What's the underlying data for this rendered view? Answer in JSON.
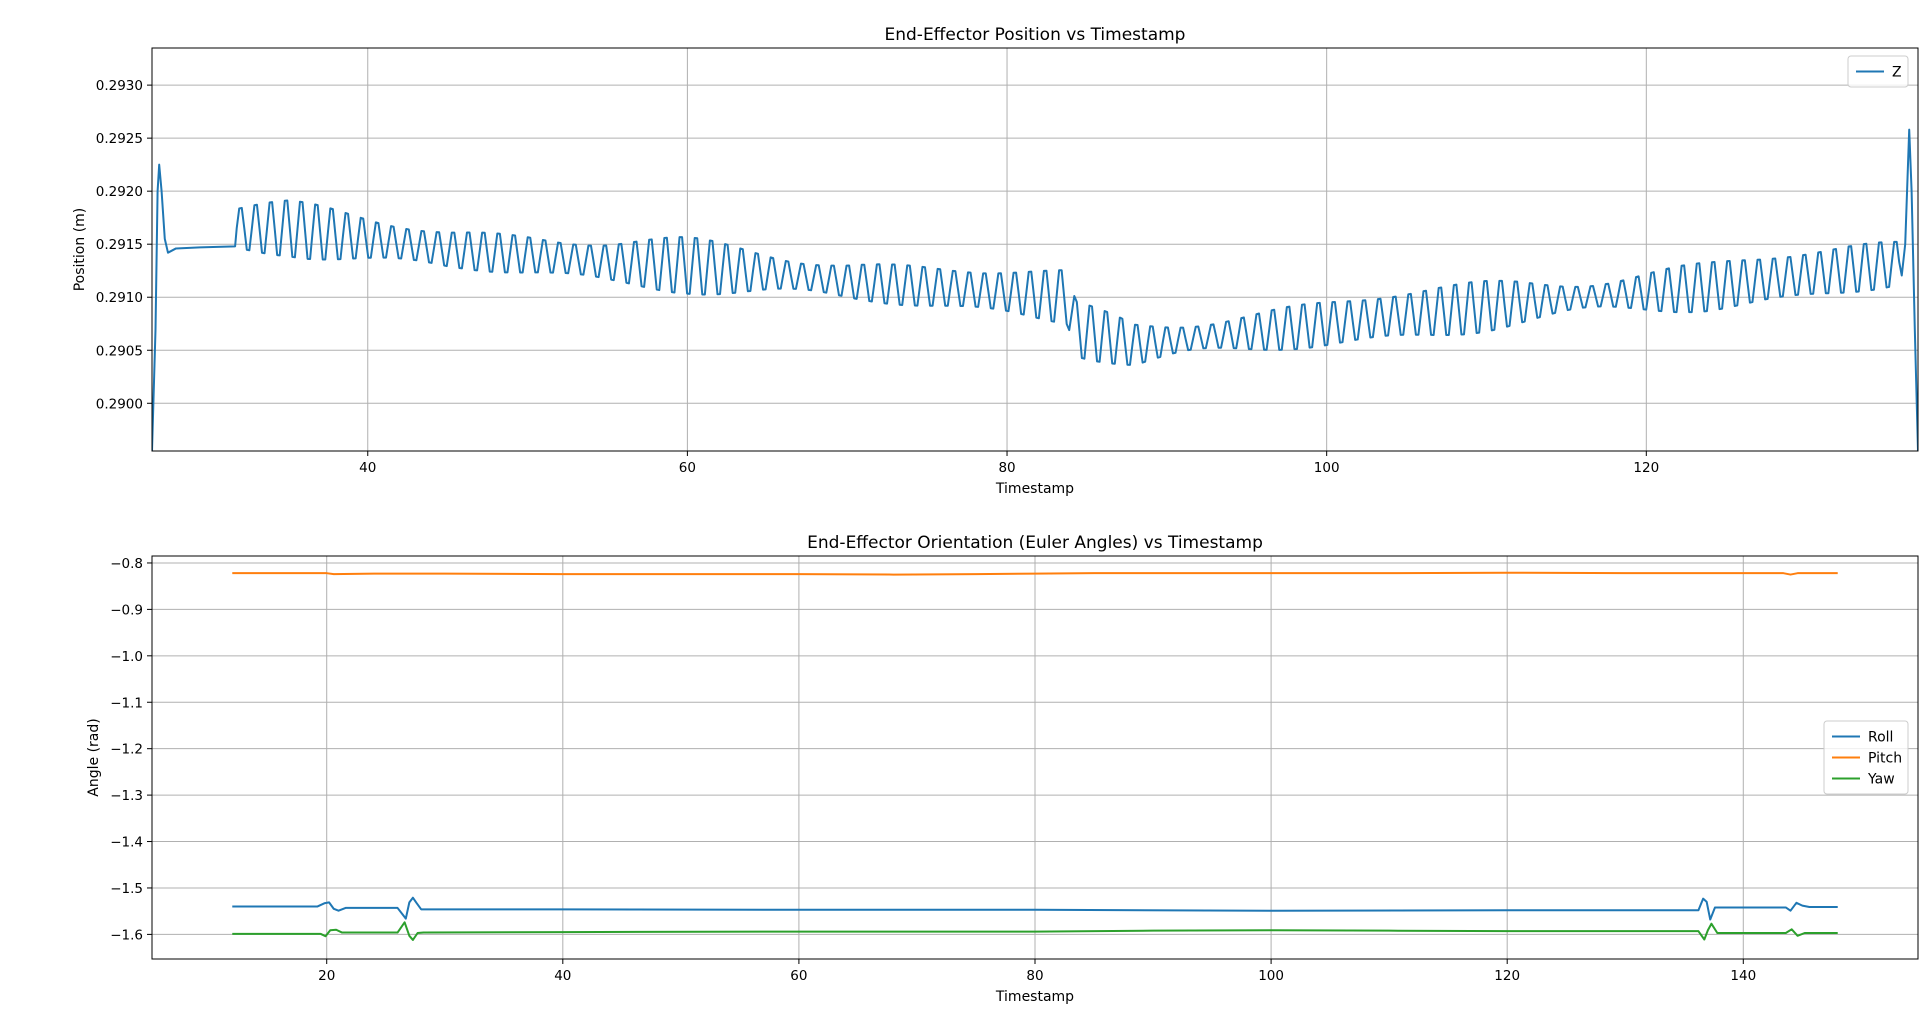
{
  "chart_data": [
    {
      "type": "line",
      "title": "End-Effector Position vs Timestamp",
      "xlabel": "Timestamp",
      "ylabel": "Position (m)",
      "xlim": [
        26.5,
        137.0
      ],
      "ylim": [
        0.28955,
        0.29335
      ],
      "xticks": [
        40,
        60,
        80,
        100,
        120
      ],
      "yticks": [
        0.29,
        0.2905,
        0.291,
        0.2915,
        0.292,
        0.2925,
        0.293
      ],
      "ytick_decimals": 4,
      "grid": true,
      "legend": "top-right",
      "series": [
        {
          "name": "Z",
          "color": "#1f77b4",
          "oscillation": {
            "amplitude": 0.00028,
            "period": 0.95,
            "from_x": 31.8,
            "to_x": 136.0
          },
          "points": [
            [
              26.5,
              0.28955
            ],
            [
              26.72,
              0.2907
            ],
            [
              26.85,
              0.292
            ],
            [
              26.95,
              0.29225
            ],
            [
              27.1,
              0.292
            ],
            [
              27.3,
              0.29155
            ],
            [
              27.5,
              0.29142
            ],
            [
              28.0,
              0.29146
            ],
            [
              29.5,
              0.29147
            ],
            [
              31.7,
              0.29148
            ],
            [
              31.8,
              0.29165
            ],
            [
              35,
              0.29165
            ],
            [
              40,
              0.29155
            ],
            [
              45,
              0.29145
            ],
            [
              50,
              0.2914
            ],
            [
              55,
              0.29133
            ],
            [
              60,
              0.2913
            ],
            [
              65,
              0.29123
            ],
            [
              70,
              0.29115
            ],
            [
              75,
              0.2911
            ],
            [
              80,
              0.29105
            ],
            [
              83.8,
              0.291
            ],
            [
              84.3,
              0.2907
            ],
            [
              88,
              0.29055
            ],
            [
              92,
              0.29062
            ],
            [
              96,
              0.29068
            ],
            [
              100,
              0.29075
            ],
            [
              104,
              0.29082
            ],
            [
              108,
              0.29088
            ],
            [
              112,
              0.29095
            ],
            [
              116,
              0.291
            ],
            [
              120,
              0.29105
            ],
            [
              124,
              0.2911
            ],
            [
              128,
              0.29118
            ],
            [
              132,
              0.29125
            ],
            [
              135.8,
              0.29132
            ],
            [
              136.2,
              0.2915
            ],
            [
              136.45,
              0.29258
            ],
            [
              136.6,
              0.292
            ],
            [
              136.8,
              0.2907
            ],
            [
              137.0,
              0.28955
            ]
          ]
        }
      ]
    },
    {
      "type": "line",
      "title": "End-Effector Orientation (Euler Angles) vs Timestamp",
      "xlabel": "Timestamp",
      "ylabel": "Angle (rad)",
      "xlim": [
        5.2,
        154.8
      ],
      "ylim": [
        -1.653,
        -0.785
      ],
      "xticks": [
        20,
        40,
        60,
        80,
        100,
        120,
        140
      ],
      "yticks": [
        -0.8,
        -0.9,
        -1.0,
        -1.1,
        -1.2,
        -1.3,
        -1.4,
        -1.5,
        -1.6
      ],
      "ytick_decimals": 1,
      "grid": true,
      "legend": "center-right",
      "series": [
        {
          "name": "Roll",
          "color": "#1f77b4",
          "points": [
            [
              12,
              -1.54
            ],
            [
              19.2,
              -1.54
            ],
            [
              19.8,
              -1.533
            ],
            [
              20.2,
              -1.531
            ],
            [
              20.6,
              -1.545
            ],
            [
              21.0,
              -1.549
            ],
            [
              21.6,
              -1.543
            ],
            [
              26.0,
              -1.543
            ],
            [
              26.4,
              -1.556
            ],
            [
              26.7,
              -1.566
            ],
            [
              27.0,
              -1.531
            ],
            [
              27.3,
              -1.521
            ],
            [
              27.6,
              -1.532
            ],
            [
              28.0,
              -1.546
            ],
            [
              40,
              -1.546
            ],
            [
              60,
              -1.547
            ],
            [
              80,
              -1.547
            ],
            [
              100,
              -1.549
            ],
            [
              120,
              -1.548
            ],
            [
              136.2,
              -1.548
            ],
            [
              136.6,
              -1.523
            ],
            [
              136.9,
              -1.53
            ],
            [
              137.2,
              -1.568
            ],
            [
              137.6,
              -1.542
            ],
            [
              143.6,
              -1.542
            ],
            [
              144.0,
              -1.549
            ],
            [
              144.5,
              -1.532
            ],
            [
              145.0,
              -1.538
            ],
            [
              145.6,
              -1.541
            ],
            [
              148,
              -1.541
            ]
          ]
        },
        {
          "name": "Pitch",
          "color": "#ff7f0e",
          "points": [
            [
              12,
              -0.822
            ],
            [
              20,
              -0.822
            ],
            [
              20.6,
              -0.824
            ],
            [
              24,
              -0.823
            ],
            [
              30,
              -0.823
            ],
            [
              40,
              -0.824
            ],
            [
              50,
              -0.824
            ],
            [
              60,
              -0.824
            ],
            [
              68,
              -0.825
            ],
            [
              75,
              -0.824
            ],
            [
              80,
              -0.823
            ],
            [
              85,
              -0.822
            ],
            [
              90,
              -0.822
            ],
            [
              100,
              -0.822
            ],
            [
              110,
              -0.822
            ],
            [
              120,
              -0.821
            ],
            [
              130,
              -0.822
            ],
            [
              137,
              -0.822
            ],
            [
              143.4,
              -0.822
            ],
            [
              144.0,
              -0.825
            ],
            [
              144.6,
              -0.822
            ],
            [
              148,
              -0.822
            ]
          ]
        },
        {
          "name": "Yaw",
          "color": "#2ca02c",
          "points": [
            [
              12,
              -1.599
            ],
            [
              19.5,
              -1.599
            ],
            [
              19.9,
              -1.604
            ],
            [
              20.3,
              -1.591
            ],
            [
              20.8,
              -1.59
            ],
            [
              21.3,
              -1.596
            ],
            [
              26.0,
              -1.596
            ],
            [
              26.3,
              -1.585
            ],
            [
              26.6,
              -1.574
            ],
            [
              27.0,
              -1.603
            ],
            [
              27.3,
              -1.612
            ],
            [
              27.7,
              -1.597
            ],
            [
              28.2,
              -1.596
            ],
            [
              40,
              -1.595
            ],
            [
              60,
              -1.594
            ],
            [
              80,
              -1.594
            ],
            [
              90,
              -1.592
            ],
            [
              100,
              -1.591
            ],
            [
              110,
              -1.592
            ],
            [
              120,
              -1.593
            ],
            [
              136.2,
              -1.593
            ],
            [
              136.7,
              -1.611
            ],
            [
              137.0,
              -1.591
            ],
            [
              137.3,
              -1.577
            ],
            [
              137.8,
              -1.597
            ],
            [
              143.6,
              -1.597
            ],
            [
              144.1,
              -1.589
            ],
            [
              144.6,
              -1.603
            ],
            [
              145.2,
              -1.597
            ],
            [
              148,
              -1.597
            ]
          ]
        }
      ]
    }
  ]
}
